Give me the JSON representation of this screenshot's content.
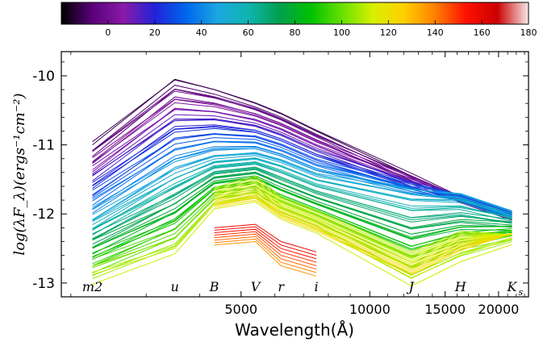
{
  "chart_data": {
    "type": "line",
    "xlabel": "Wavelength(Å)",
    "ylabel": "log(λF_λ)(ergs⁻¹cm⁻²)",
    "xscale": "log",
    "xlim": [
      1900,
      23500
    ],
    "ylim": [
      -13.2,
      -9.65
    ],
    "x_ticks": [
      5000,
      10000,
      15000,
      20000
    ],
    "x_tick_labels": [
      "5000",
      "10000",
      "15000",
      "20000"
    ],
    "y_ticks": [
      -13,
      -12,
      -11,
      -10
    ],
    "y_tick_labels": [
      "-13",
      "-12",
      "-11",
      "-10"
    ],
    "colorbar": {
      "range": [
        -20,
        180
      ],
      "ticks": [
        0,
        20,
        40,
        60,
        80,
        100,
        120,
        140,
        160,
        180
      ],
      "tick_labels": [
        "0",
        "20",
        "40",
        "60",
        "80",
        "100",
        "120",
        "140",
        "160",
        "180"
      ],
      "colors": [
        "#000000",
        "#5a007a",
        "#8a1aa8",
        "#2222d8",
        "#0066ee",
        "#1aa6e0",
        "#10b4b0",
        "#00a050",
        "#00c000",
        "#66e000",
        "#d8f000",
        "#ffd000",
        "#ff8000",
        "#ff1000",
        "#cc0000",
        "#f8e8e8"
      ]
    },
    "bands": [
      {
        "name": "m2",
        "wavelength": 2246
      },
      {
        "name": "u",
        "wavelength": 3501
      },
      {
        "name": "B",
        "wavelength": 4329
      },
      {
        "name": "V",
        "wavelength": 5402
      },
      {
        "name": "r",
        "wavelength": 6200
      },
      {
        "name": "i",
        "wavelength": 7500
      },
      {
        "name": "J",
        "wavelength": 12500
      },
      {
        "name": "H",
        "wavelength": 16300
      },
      {
        "name": "K_s",
        "wavelength": 21500
      }
    ],
    "band_label_text": [
      "m2",
      "u",
      "B",
      "V",
      "r",
      "i",
      "J",
      "H",
      "K",
      "s"
    ],
    "seds": {
      "early": {
        "x": [
          2246,
          3501,
          4329,
          5402,
          6200,
          7500,
          12500,
          16300,
          21500
        ],
        "y": [
          -11.0,
          -10.05,
          -10.2,
          -10.4,
          -10.55,
          -10.8,
          -11.45,
          -11.8,
          -12.05
        ]
      },
      "mid": {
        "x": [
          2246,
          3501,
          4329,
          5402,
          6200,
          7500,
          12500,
          16300,
          21500
        ],
        "y": [
          -12.1,
          -11.4,
          -11.2,
          -11.15,
          -11.25,
          -11.45,
          -11.7,
          -11.75,
          -12.0
        ]
      },
      "late": {
        "x": [
          2246,
          3501,
          4329,
          5402,
          6200,
          7500,
          12500,
          16300,
          21500
        ],
        "y": [
          -12.95,
          -12.55,
          -11.9,
          -11.8,
          -12.05,
          -12.25,
          -13.0,
          -12.65,
          -12.4
        ]
      },
      "nebular_uv_trend": {
        "x": [
          2246,
          3501,
          4329,
          5402,
          6200,
          7500,
          12500,
          16300,
          21500
        ],
        "y": [
          -12.6,
          -12.45,
          -11.62,
          -11.45,
          -11.75,
          -11.95,
          -12.55,
          -12.25,
          -12.3
        ]
      },
      "nebular_optical": {
        "x": [
          4329,
          5402,
          6200,
          7500
        ],
        "y": [
          -12.2,
          -12.15,
          -12.5,
          -12.65
        ]
      }
    }
  }
}
